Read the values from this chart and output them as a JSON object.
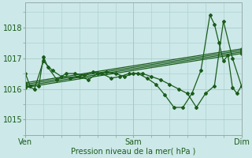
{
  "background_color": "#cce8e8",
  "grid_color": "#aacccc",
  "line_color": "#1a5c1a",
  "ylim": [
    1014.5,
    1018.8
  ],
  "yticks": [
    1015,
    1016,
    1017,
    1018
  ],
  "xtick_labels": [
    "Ven",
    "Sam",
    "Dim"
  ],
  "xtick_positions": [
    0,
    48,
    96
  ],
  "xlabel": "Pression niveau de la mer( hPa )",
  "lines": [
    {
      "x": [
        0,
        96
      ],
      "y": [
        1016.05,
        1017.15
      ]
    },
    {
      "x": [
        0,
        96
      ],
      "y": [
        1016.1,
        1017.2
      ]
    },
    {
      "x": [
        0,
        96
      ],
      "y": [
        1016.15,
        1017.25
      ]
    },
    {
      "x": [
        0,
        96
      ],
      "y": [
        1016.2,
        1017.3
      ]
    },
    {
      "x": [
        0,
        4,
        8,
        12,
        16,
        20,
        24,
        28,
        32,
        36,
        40,
        44,
        48,
        52,
        56,
        60,
        64,
        68,
        72,
        76,
        80,
        84,
        88,
        92,
        96
      ],
      "y": [
        1016.1,
        1016.0,
        1016.9,
        1016.6,
        1016.4,
        1016.35,
        1016.4,
        1016.3,
        1016.5,
        1016.55,
        1016.5,
        1016.4,
        1016.5,
        1016.5,
        1016.4,
        1016.3,
        1016.15,
        1016.0,
        1015.85,
        1015.4,
        1015.85,
        1016.1,
        1018.2,
        1017.0,
        1016.1
      ]
    },
    {
      "x": [
        0,
        2,
        6,
        8,
        10,
        14,
        18,
        22,
        26,
        30,
        34,
        38,
        42,
        46,
        50,
        54,
        58,
        62,
        66,
        70,
        74,
        78,
        82,
        84,
        86,
        88,
        90,
        92,
        94,
        96
      ],
      "y": [
        1016.5,
        1016.1,
        1016.1,
        1017.05,
        1016.7,
        1016.3,
        1016.5,
        1016.5,
        1016.45,
        1016.55,
        1016.5,
        1016.35,
        1016.4,
        1016.5,
        1016.5,
        1016.35,
        1016.15,
        1015.8,
        1015.4,
        1015.4,
        1015.85,
        1016.6,
        1018.4,
        1018.1,
        1017.5,
        1016.9,
        1017.1,
        1016.05,
        1015.85,
        1016.1
      ]
    }
  ]
}
